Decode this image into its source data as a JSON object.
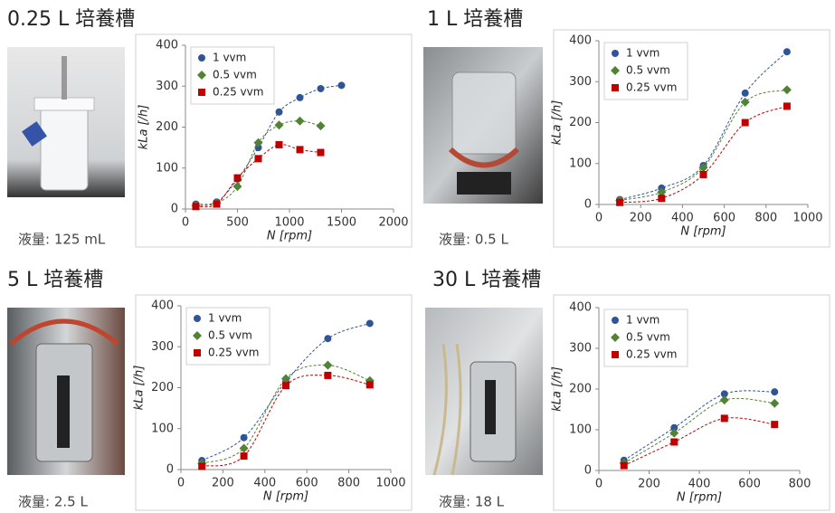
{
  "chart_data": [
    {
      "type": "scatter",
      "title": "0.25 L 培養槽",
      "caption": "液量: 125 mL",
      "xlabel": "N [rpm]",
      "ylabel": "kLa [/h]",
      "xlim": [
        0,
        2000
      ],
      "xticks": [
        0,
        500,
        1000,
        1500,
        2000
      ],
      "ylim": [
        0,
        400
      ],
      "yticks": [
        0,
        100,
        200,
        300,
        400
      ],
      "series": [
        {
          "name": "1 vvm",
          "color": "#2f5597",
          "marker": "circle",
          "x": [
            100,
            300,
            500,
            700,
            900,
            1100,
            1300,
            1500
          ],
          "values": [
            12,
            17,
            73,
            150,
            237,
            272,
            294,
            302
          ]
        },
        {
          "name": "0.5 vvm",
          "color": "#548235",
          "marker": "diamond",
          "x": [
            100,
            300,
            500,
            700,
            900,
            1100,
            1300
          ],
          "values": [
            8,
            14,
            55,
            162,
            205,
            215,
            203
          ]
        },
        {
          "name": "0.25 vvm",
          "color": "#c00000",
          "marker": "square",
          "x": [
            100,
            300,
            500,
            700,
            900,
            1100,
            1300
          ],
          "values": [
            6,
            12,
            76,
            123,
            157,
            145,
            138
          ]
        }
      ]
    },
    {
      "type": "scatter",
      "title": "1 L 培養槽",
      "caption": "液量: 0.5 L",
      "xlabel": "N [rpm]",
      "ylabel": "kLa [/h]",
      "xlim": [
        0,
        1000
      ],
      "xticks": [
        0,
        200,
        400,
        600,
        800,
        1000
      ],
      "ylim": [
        0,
        400
      ],
      "yticks": [
        0,
        100,
        200,
        300,
        400
      ],
      "series": [
        {
          "name": "1 vvm",
          "color": "#2f5597",
          "marker": "circle",
          "x": [
            100,
            300,
            500,
            700,
            900
          ],
          "values": [
            12,
            40,
            95,
            272,
            373
          ]
        },
        {
          "name": "0.5 vvm",
          "color": "#548235",
          "marker": "diamond",
          "x": [
            100,
            300,
            500,
            700,
            900
          ],
          "values": [
            10,
            30,
            90,
            250,
            280
          ]
        },
        {
          "name": "0.25 vvm",
          "color": "#c00000",
          "marker": "square",
          "x": [
            100,
            300,
            500,
            700,
            900
          ],
          "values": [
            5,
            15,
            73,
            200,
            240
          ]
        }
      ]
    },
    {
      "type": "scatter",
      "title": "5 L 培養槽",
      "caption": "液量: 2.5 L",
      "xlabel": "N [rpm]",
      "ylabel": "kLa [/h]",
      "xlim": [
        0,
        1000
      ],
      "xticks": [
        0,
        200,
        400,
        600,
        800,
        1000
      ],
      "ylim": [
        0,
        400
      ],
      "yticks": [
        0,
        100,
        200,
        300,
        400
      ],
      "series": [
        {
          "name": "1 vvm",
          "color": "#2f5597",
          "marker": "circle",
          "x": [
            100,
            300,
            500,
            700,
            900
          ],
          "values": [
            22,
            78,
            215,
            320,
            357
          ]
        },
        {
          "name": "0.5 vvm",
          "color": "#548235",
          "marker": "diamond",
          "x": [
            100,
            300,
            500,
            700,
            900
          ],
          "values": [
            15,
            52,
            222,
            255,
            217
          ]
        },
        {
          "name": "0.25 vvm",
          "color": "#c00000",
          "marker": "square",
          "x": [
            100,
            300,
            500,
            700,
            900
          ],
          "values": [
            8,
            33,
            205,
            230,
            207
          ]
        }
      ]
    },
    {
      "type": "scatter",
      "title": "30 L 培養槽",
      "caption": "液量: 18 L",
      "xlabel": "N [rpm]",
      "ylabel": "kLa [/h]",
      "xlim": [
        0,
        800
      ],
      "xticks": [
        0,
        200,
        400,
        600,
        800
      ],
      "ylim": [
        0,
        400
      ],
      "yticks": [
        0,
        100,
        200,
        300,
        400
      ],
      "series": [
        {
          "name": "1 vvm",
          "color": "#2f5597",
          "marker": "circle",
          "x": [
            100,
            300,
            500,
            700
          ],
          "values": [
            25,
            105,
            188,
            193
          ]
        },
        {
          "name": "0.5 vvm",
          "color": "#548235",
          "marker": "diamond",
          "x": [
            100,
            300,
            500,
            700
          ],
          "values": [
            18,
            92,
            173,
            165
          ]
        },
        {
          "name": "0.25 vvm",
          "color": "#c00000",
          "marker": "square",
          "x": [
            100,
            300,
            500,
            700
          ],
          "values": [
            12,
            70,
            128,
            113
          ]
        }
      ]
    }
  ]
}
